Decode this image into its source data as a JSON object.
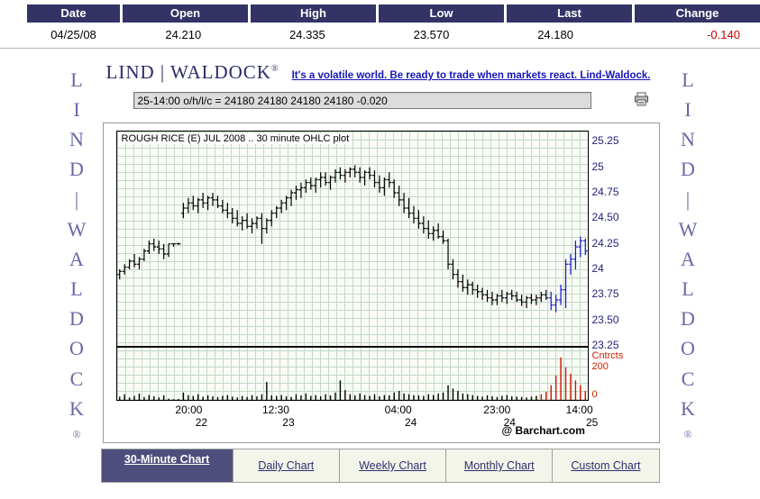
{
  "quote_table": {
    "headers": [
      "Date",
      "Open",
      "High",
      "Low",
      "Last",
      "Change"
    ],
    "values": [
      "04/25/08",
      "24.210",
      "24.335",
      "23.570",
      "24.180",
      "-0.140"
    ]
  },
  "branding": {
    "logo_text": "LIND | WALDOCK",
    "logo_reg": "®",
    "tagline": "It's a volatile world. Be ready to trade when markets react. Lind-Waldock.",
    "vertical_letters": [
      "L",
      "I",
      "N",
      "D",
      "|",
      "W",
      "A",
      "L",
      "D",
      "O",
      "C",
      "K",
      "®"
    ]
  },
  "quote_readout": {
    "text": "25-14:00 o/h/l/c = 24180 24180 24180 24180 -0.020"
  },
  "icons": {
    "print": "printer"
  },
  "colors": {
    "header_bg": "#333366",
    "negative": "#cc0000",
    "brand_purple": "#6868a8",
    "link_blue": "#1616bb",
    "tab_active_bg": "#4e4e7d"
  },
  "chart_data": {
    "type": "ohlc",
    "title": "ROUGH RICE (E) JUL 2008 .. 30 minute OHLC plot",
    "watermark": "@ Barchart.com",
    "ylim": [
      23.25,
      25.35
    ],
    "y_ticks": [
      "25.25",
      "25",
      "24.75",
      "24.50",
      "24.25",
      "24",
      "23.75",
      "23.50",
      "23.25"
    ],
    "x_ticks": [
      {
        "time": "20:00",
        "day": "22",
        "pos": 0.155
      },
      {
        "time": "12:30",
        "day": "23",
        "pos": 0.34
      },
      {
        "time": "04:00",
        "day": "24",
        "pos": 0.6
      },
      {
        "time": "23:00",
        "day": "24",
        "pos": 0.81
      },
      {
        "time": "14:00",
        "day": "25",
        "pos": 0.985
      }
    ],
    "volume_axis": {
      "label": "Cntrcts",
      "tick": "200",
      "zero": "0",
      "max": 320
    },
    "colors": {
      "bar": "#000000",
      "recent_bar": "#1414cc",
      "volume": "#000000",
      "recent_volume": "#cc1400"
    },
    "blue_from_index": 88,
    "red_from_index": 86,
    "bars": [
      [
        23.95,
        24.0,
        23.9,
        23.98
      ],
      [
        23.98,
        24.05,
        23.95,
        24.02
      ],
      [
        24.02,
        24.1,
        24.0,
        24.08
      ],
      [
        24.08,
        24.15,
        24.02,
        24.05
      ],
      [
        24.05,
        24.12,
        24.0,
        24.1
      ],
      [
        24.1,
        24.2,
        24.08,
        24.18
      ],
      [
        24.18,
        24.28,
        24.15,
        24.25
      ],
      [
        24.25,
        24.3,
        24.18,
        24.22
      ],
      [
        24.22,
        24.28,
        24.15,
        24.2
      ],
      [
        24.2,
        24.25,
        24.1,
        24.15
      ],
      [
        24.15,
        24.25,
        24.12,
        24.25
      ],
      [
        24.25,
        24.25,
        24.22,
        24.25
      ],
      [
        24.25,
        24.26,
        24.24,
        24.25
      ],
      [
        24.55,
        24.65,
        24.5,
        24.6
      ],
      [
        24.6,
        24.7,
        24.55,
        24.65
      ],
      [
        24.65,
        24.72,
        24.58,
        24.62
      ],
      [
        24.62,
        24.7,
        24.55,
        24.68
      ],
      [
        24.68,
        24.75,
        24.6,
        24.65
      ],
      [
        24.65,
        24.72,
        24.58,
        24.7
      ],
      [
        24.7,
        24.75,
        24.62,
        24.68
      ],
      [
        24.68,
        24.72,
        24.6,
        24.62
      ],
      [
        24.62,
        24.68,
        24.55,
        24.58
      ],
      [
        24.58,
        24.65,
        24.5,
        24.55
      ],
      [
        24.55,
        24.6,
        24.45,
        24.5
      ],
      [
        24.5,
        24.58,
        24.42,
        24.45
      ],
      [
        24.45,
        24.52,
        24.38,
        24.48
      ],
      [
        24.48,
        24.55,
        24.4,
        24.42
      ],
      [
        24.42,
        24.5,
        24.35,
        24.45
      ],
      [
        24.45,
        24.52,
        24.4,
        24.5
      ],
      [
        24.5,
        24.55,
        24.25,
        24.4
      ],
      [
        24.4,
        24.5,
        24.35,
        24.48
      ],
      [
        24.48,
        24.58,
        24.42,
        24.55
      ],
      [
        24.55,
        24.62,
        24.5,
        24.6
      ],
      [
        24.6,
        24.68,
        24.55,
        24.65
      ],
      [
        24.65,
        24.72,
        24.58,
        24.7
      ],
      [
        24.7,
        24.78,
        24.62,
        24.75
      ],
      [
        24.75,
        24.82,
        24.68,
        24.78
      ],
      [
        24.78,
        24.85,
        24.7,
        24.8
      ],
      [
        24.8,
        24.88,
        24.75,
        24.85
      ],
      [
        24.85,
        24.9,
        24.78,
        24.82
      ],
      [
        24.82,
        24.9,
        24.75,
        24.88
      ],
      [
        24.88,
        24.95,
        24.8,
        24.9
      ],
      [
        24.9,
        24.95,
        24.82,
        24.85
      ],
      [
        24.85,
        24.92,
        24.78,
        24.9
      ],
      [
        24.9,
        24.98,
        24.85,
        24.95
      ],
      [
        24.95,
        25.0,
        24.88,
        24.92
      ],
      [
        24.92,
        24.98,
        24.85,
        24.95
      ],
      [
        24.95,
        25.0,
        24.9,
        24.98
      ],
      [
        24.98,
        25.02,
        24.9,
        24.95
      ],
      [
        24.95,
        25.0,
        24.85,
        24.9
      ],
      [
        24.9,
        24.97,
        24.82,
        24.95
      ],
      [
        24.95,
        25.0,
        24.88,
        24.92
      ],
      [
        24.92,
        24.97,
        24.8,
        24.85
      ],
      [
        24.85,
        24.92,
        24.75,
        24.8
      ],
      [
        24.8,
        24.9,
        24.72,
        24.88
      ],
      [
        24.88,
        24.95,
        24.8,
        24.85
      ],
      [
        24.85,
        24.88,
        24.7,
        24.75
      ],
      [
        24.75,
        24.82,
        24.62,
        24.68
      ],
      [
        24.68,
        24.75,
        24.55,
        24.6
      ],
      [
        24.6,
        24.7,
        24.5,
        24.55
      ],
      [
        24.55,
        24.62,
        24.45,
        24.5
      ],
      [
        24.5,
        24.58,
        24.4,
        24.45
      ],
      [
        24.45,
        24.52,
        24.35,
        24.4
      ],
      [
        24.4,
        24.48,
        24.3,
        24.35
      ],
      [
        24.35,
        24.42,
        24.28,
        24.38
      ],
      [
        24.38,
        24.45,
        24.3,
        24.32
      ],
      [
        24.32,
        24.38,
        24.25,
        24.28
      ],
      [
        24.28,
        24.3,
        24.0,
        24.05
      ],
      [
        24.05,
        24.1,
        23.9,
        23.95
      ],
      [
        23.95,
        24.0,
        23.82,
        23.88
      ],
      [
        23.88,
        23.95,
        23.78,
        23.82
      ],
      [
        23.82,
        23.9,
        23.75,
        23.85
      ],
      [
        23.85,
        23.88,
        23.75,
        23.8
      ],
      [
        23.8,
        23.85,
        23.72,
        23.78
      ],
      [
        23.78,
        23.82,
        23.7,
        23.75
      ],
      [
        23.75,
        23.8,
        23.68,
        23.72
      ],
      [
        23.72,
        23.78,
        23.65,
        23.7
      ],
      [
        23.7,
        23.76,
        23.65,
        23.74
      ],
      [
        23.74,
        23.8,
        23.68,
        23.72
      ],
      [
        23.72,
        23.78,
        23.66,
        23.76
      ],
      [
        23.76,
        23.8,
        23.7,
        23.74
      ],
      [
        23.74,
        23.78,
        23.68,
        23.7
      ],
      [
        23.7,
        23.75,
        23.64,
        23.68
      ],
      [
        23.68,
        23.74,
        23.62,
        23.72
      ],
      [
        23.72,
        23.76,
        23.66,
        23.7
      ],
      [
        23.7,
        23.75,
        23.65,
        23.72
      ],
      [
        23.72,
        23.78,
        23.68,
        23.75
      ],
      [
        23.75,
        23.8,
        23.7,
        23.72
      ],
      [
        23.72,
        23.78,
        23.6,
        23.65
      ],
      [
        23.65,
        23.75,
        23.58,
        23.7
      ],
      [
        23.7,
        23.85,
        23.65,
        23.8
      ],
      [
        23.8,
        24.1,
        23.62,
        24.05
      ],
      [
        24.05,
        24.15,
        23.95,
        24.1
      ],
      [
        24.1,
        24.28,
        24.0,
        24.22
      ],
      [
        24.22,
        24.32,
        24.12,
        24.28
      ],
      [
        24.28,
        24.3,
        24.14,
        24.18
      ]
    ],
    "volumes": [
      20,
      35,
      15,
      25,
      40,
      18,
      30,
      22,
      15,
      28,
      8,
      5,
      6,
      45,
      30,
      25,
      35,
      20,
      28,
      22,
      18,
      25,
      30,
      20,
      15,
      25,
      18,
      30,
      22,
      35,
      110,
      28,
      25,
      30,
      22,
      18,
      35,
      28,
      40,
      25,
      30,
      22,
      35,
      28,
      45,
      120,
      60,
      35,
      28,
      40,
      30,
      25,
      35,
      22,
      30,
      28,
      45,
      55,
      40,
      35,
      30,
      28,
      25,
      35,
      30,
      40,
      45,
      90,
      70,
      55,
      40,
      35,
      30,
      25,
      20,
      28,
      22,
      18,
      25,
      30,
      22,
      20,
      18,
      15,
      20,
      25,
      35,
      50,
      90,
      150,
      260,
      200,
      160,
      120,
      90,
      55
    ]
  },
  "tabs": [
    {
      "label": "30-Minute Chart",
      "active": true
    },
    {
      "label": "Daily Chart",
      "active": false
    },
    {
      "label": "Weekly Chart",
      "active": false
    },
    {
      "label": "Monthly Chart",
      "active": false
    },
    {
      "label": "Custom Chart",
      "active": false
    }
  ]
}
